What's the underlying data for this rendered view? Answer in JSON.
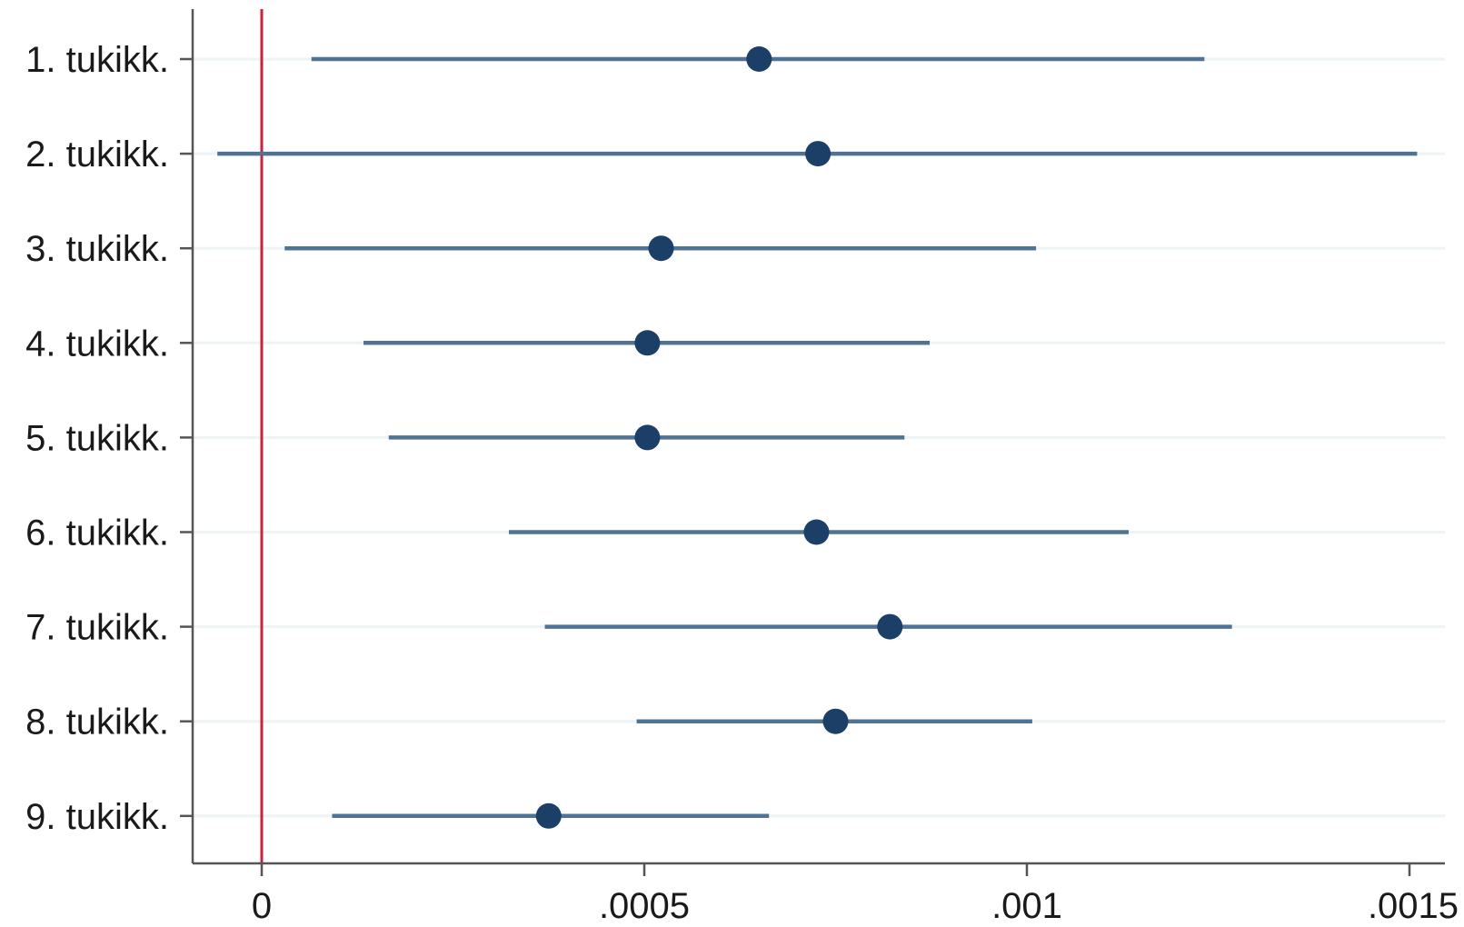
{
  "chart_data": {
    "type": "scatter",
    "subtype": "coefficient-plot",
    "title": "",
    "xlabel": "",
    "ylabel": "",
    "categories": [
      "1. tukikk.",
      "2. tukikk.",
      "3. tukikk.",
      "4. tukikk.",
      "5. tukikk.",
      "6. tukikk.",
      "7. tukikk.",
      "8. tukikk.",
      "9. tukikk."
    ],
    "estimates": [
      0.00065,
      0.000727,
      0.000522,
      0.000504,
      0.000504,
      0.000725,
      0.000821,
      0.00075,
      0.000375
    ],
    "ci_low": [
      6.5e-05,
      -5.8e-05,
      3e-05,
      0.000133,
      0.000166,
      0.000323,
      0.00037,
      0.00049,
      9.2e-05
    ],
    "ci_high": [
      0.001232,
      0.00151,
      0.001012,
      0.000873,
      0.00084,
      0.001133,
      0.001268,
      0.001007,
      0.000663
    ],
    "xlim": [
      -9e-05,
      0.00155
    ],
    "x_ticks": [
      0,
      0.0005,
      0.001,
      0.0015
    ],
    "x_tick_labels": [
      "0",
      ".0005",
      ".001",
      ".0015"
    ],
    "reference_line": 0,
    "grid": "horizontal",
    "legend": "none",
    "colors": {
      "point": "#1b3f66",
      "ci": "#4f7396",
      "reference": "#c8223e",
      "axis": "#555555",
      "grid": "#eef3f6"
    }
  }
}
